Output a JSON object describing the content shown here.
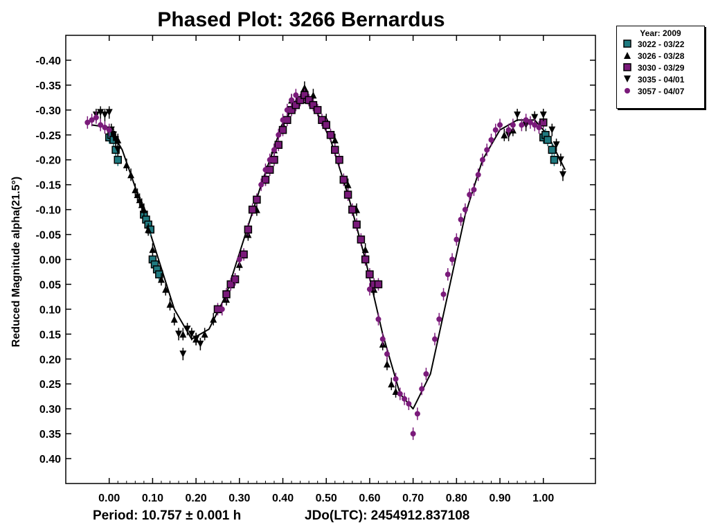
{
  "chart_data": {
    "type": "scatter",
    "title": "Phased Plot: 3266 Bernardus",
    "ylabel": "Reduced Magnitude alpha(21.5°)",
    "xlim": [
      -0.1,
      1.12
    ],
    "ylim": [
      -0.45,
      0.45
    ],
    "y_inverted": true,
    "x_ticks": [
      "0.00",
      "0.10",
      "0.20",
      "0.30",
      "0.40",
      "0.50",
      "0.60",
      "0.70",
      "0.80",
      "0.90",
      "1.00"
    ],
    "y_ticks": [
      "-0.40",
      "-0.35",
      "-0.30",
      "-0.25",
      "-0.20",
      "-0.15",
      "-0.10",
      "-0.05",
      "0.00",
      "0.05",
      "0.10",
      "0.15",
      "0.20",
      "0.25",
      "0.30",
      "0.35",
      "0.40"
    ],
    "fit_curve": {
      "x": [
        -0.04,
        0.0,
        0.03,
        0.07,
        0.11,
        0.15,
        0.19,
        0.23,
        0.27,
        0.31,
        0.35,
        0.39,
        0.43,
        0.47,
        0.51,
        0.55,
        0.59,
        0.63,
        0.67,
        0.7,
        0.74,
        0.78,
        0.82,
        0.86,
        0.9,
        0.94,
        0.98,
        1.01,
        1.05
      ],
      "y": [
        -0.27,
        -0.265,
        -0.22,
        -0.12,
        -0.01,
        0.1,
        0.16,
        0.14,
        0.07,
        -0.04,
        -0.15,
        -0.25,
        -0.32,
        -0.31,
        -0.24,
        -0.13,
        0.0,
        0.15,
        0.27,
        0.3,
        0.23,
        0.07,
        -0.09,
        -0.2,
        -0.26,
        -0.28,
        -0.28,
        -0.25,
        -0.18
      ]
    },
    "series": [
      {
        "name": "3022 - 03/22",
        "marker": "square",
        "color": "#1f7a80",
        "x": [
          0.0,
          0.005,
          0.01,
          0.015,
          0.02,
          0.08,
          0.085,
          0.09,
          0.095,
          0.1,
          0.105,
          0.11,
          0.115,
          1.0,
          1.005,
          1.01,
          1.02,
          1.025
        ],
        "y": [
          -0.245,
          -0.25,
          -0.24,
          -0.22,
          -0.2,
          -0.09,
          -0.08,
          -0.07,
          -0.06,
          0.0,
          0.01,
          0.02,
          0.03,
          -0.245,
          -0.25,
          -0.24,
          -0.22,
          -0.2
        ]
      },
      {
        "name": "3026 - 03/28",
        "marker": "triangle-up",
        "color": "#000000",
        "x": [
          0.02,
          0.04,
          0.05,
          0.06,
          0.065,
          0.07,
          0.075,
          0.08,
          0.09,
          0.1,
          0.12,
          0.13,
          0.14,
          0.15,
          0.17,
          0.2,
          0.22,
          0.24,
          0.27,
          0.3,
          0.32,
          0.34,
          0.36,
          0.38,
          0.4,
          0.42,
          0.45,
          0.47,
          0.5,
          0.52,
          0.55,
          0.57,
          0.59,
          0.61,
          0.63,
          0.64,
          0.65,
          0.66,
          0.91,
          0.93
        ],
        "y": [
          -0.24,
          -0.19,
          -0.17,
          -0.14,
          -0.13,
          -0.12,
          -0.11,
          -0.1,
          -0.06,
          -0.02,
          0.04,
          0.06,
          0.09,
          0.12,
          0.15,
          0.16,
          0.15,
          0.12,
          0.08,
          0.01,
          -0.05,
          -0.1,
          -0.16,
          -0.22,
          -0.27,
          -0.32,
          -0.345,
          -0.33,
          -0.28,
          -0.24,
          -0.15,
          -0.1,
          -0.02,
          0.06,
          0.17,
          0.21,
          0.25,
          0.265,
          -0.25,
          -0.26
        ]
      },
      {
        "name": "3030 - 03/29",
        "marker": "square",
        "color": "#7a1a7a",
        "x": [
          0.25,
          0.27,
          0.28,
          0.29,
          0.31,
          0.32,
          0.33,
          0.34,
          0.36,
          0.37,
          0.38,
          0.39,
          0.4,
          0.41,
          0.42,
          0.43,
          0.44,
          0.45,
          0.46,
          0.47,
          0.48,
          0.49,
          0.5,
          0.51,
          0.52,
          0.53,
          0.54,
          0.55,
          0.56,
          0.57,
          0.58,
          0.59,
          0.6,
          0.61,
          0.62,
          1.0
        ],
        "y": [
          0.1,
          0.07,
          0.05,
          0.04,
          -0.01,
          -0.06,
          -0.1,
          -0.12,
          -0.16,
          -0.18,
          -0.2,
          -0.23,
          -0.26,
          -0.28,
          -0.3,
          -0.31,
          -0.32,
          -0.33,
          -0.32,
          -0.31,
          -0.3,
          -0.28,
          -0.27,
          -0.25,
          -0.22,
          -0.2,
          -0.16,
          -0.13,
          -0.1,
          -0.07,
          -0.04,
          0.0,
          0.03,
          0.05,
          0.05,
          -0.275
        ]
      },
      {
        "name": "3035 - 04/01",
        "marker": "triangle-down",
        "color": "#000000",
        "x": [
          -0.03,
          -0.02,
          -0.01,
          0.0,
          0.005,
          0.01,
          0.015,
          0.02,
          0.16,
          0.17,
          0.18,
          0.19,
          0.2,
          0.21,
          0.92,
          0.94,
          0.96,
          0.98,
          1.0,
          1.02,
          1.03,
          1.04,
          1.045
        ],
        "y": [
          -0.29,
          -0.295,
          -0.29,
          -0.295,
          -0.26,
          -0.25,
          -0.24,
          -0.22,
          0.15,
          0.19,
          0.14,
          0.15,
          0.16,
          0.17,
          -0.25,
          -0.29,
          -0.27,
          -0.285,
          -0.29,
          -0.26,
          -0.23,
          -0.2,
          -0.17
        ]
      },
      {
        "name": "3057 - 04/07",
        "marker": "circle",
        "color": "#7a1a7a",
        "x": [
          -0.05,
          -0.04,
          -0.03,
          -0.02,
          -0.01,
          0.0,
          0.26,
          0.28,
          0.29,
          0.3,
          0.35,
          0.36,
          0.37,
          0.38,
          0.39,
          0.4,
          0.41,
          0.42,
          0.43,
          0.6,
          0.62,
          0.63,
          0.64,
          0.66,
          0.67,
          0.68,
          0.69,
          0.7,
          0.71,
          0.72,
          0.73,
          0.75,
          0.76,
          0.77,
          0.78,
          0.79,
          0.8,
          0.81,
          0.82,
          0.83,
          0.84,
          0.85,
          0.86,
          0.87,
          0.88,
          0.89,
          0.9,
          0.92,
          0.93,
          0.95,
          0.96,
          0.97,
          0.98,
          0.99
        ],
        "y": [
          -0.275,
          -0.28,
          -0.285,
          -0.27,
          -0.265,
          -0.26,
          0.1,
          0.05,
          0.04,
          0.0,
          -0.15,
          -0.18,
          -0.2,
          -0.22,
          -0.25,
          -0.28,
          -0.3,
          -0.32,
          -0.33,
          0.06,
          0.12,
          0.16,
          0.19,
          0.24,
          0.27,
          0.28,
          0.29,
          0.35,
          0.31,
          0.26,
          0.23,
          0.16,
          0.12,
          0.07,
          0.03,
          0.0,
          -0.04,
          -0.08,
          -0.1,
          -0.13,
          -0.14,
          -0.17,
          -0.2,
          -0.22,
          -0.24,
          -0.26,
          -0.27,
          -0.26,
          -0.27,
          -0.27,
          -0.28,
          -0.275,
          -0.27,
          -0.265
        ]
      }
    ]
  },
  "legend": {
    "title": "Year: 2009",
    "entries": [
      {
        "label": "3022 - 03/22",
        "marker": "square",
        "color": "#1f7a80"
      },
      {
        "label": "3026 - 03/28",
        "marker": "triangle-up",
        "color": "#000000"
      },
      {
        "label": "3030 - 03/29",
        "marker": "square",
        "color": "#7a1a7a"
      },
      {
        "label": "3035 - 04/01",
        "marker": "triangle-down",
        "color": "#000000"
      },
      {
        "label": "3057 - 04/07",
        "marker": "circle",
        "color": "#7a1a7a"
      }
    ]
  },
  "footer": {
    "period": "Period: 10.757 ± 0.001 h",
    "jdo": "JDo(LTC): 2454912.837108"
  }
}
